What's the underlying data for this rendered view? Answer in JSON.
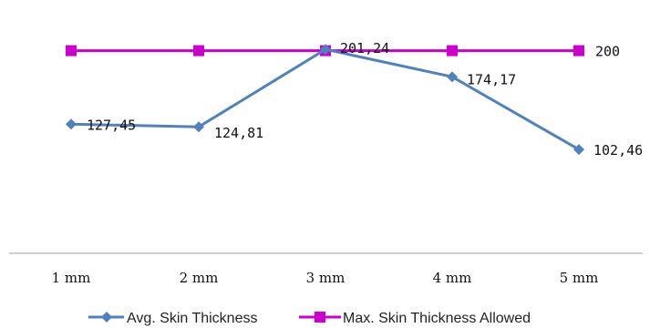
{
  "chart_data": {
    "type": "line",
    "categories": [
      "1 mm",
      "2 mm",
      "3 mm",
      "4 mm",
      "5 mm"
    ],
    "ylim": [
      0,
      250
    ],
    "grid": false,
    "legend_position": "bottom",
    "series": [
      {
        "name": "Avg. Skin Thickness",
        "values": [
          127.45,
          124.81,
          201.24,
          174.17,
          102.46
        ],
        "labels": [
          "127,45",
          "124,81",
          "201,24",
          "174,17",
          "102,46"
        ],
        "color": "#4f81bd",
        "marker": "diamond"
      },
      {
        "name": "Max. Skin Thickness Allowed",
        "values": [
          200,
          200,
          200,
          200,
          200
        ],
        "labels": [
          "",
          "",
          "",
          "",
          "200"
        ],
        "color": "#cc00cc",
        "marker": "square"
      }
    ]
  }
}
